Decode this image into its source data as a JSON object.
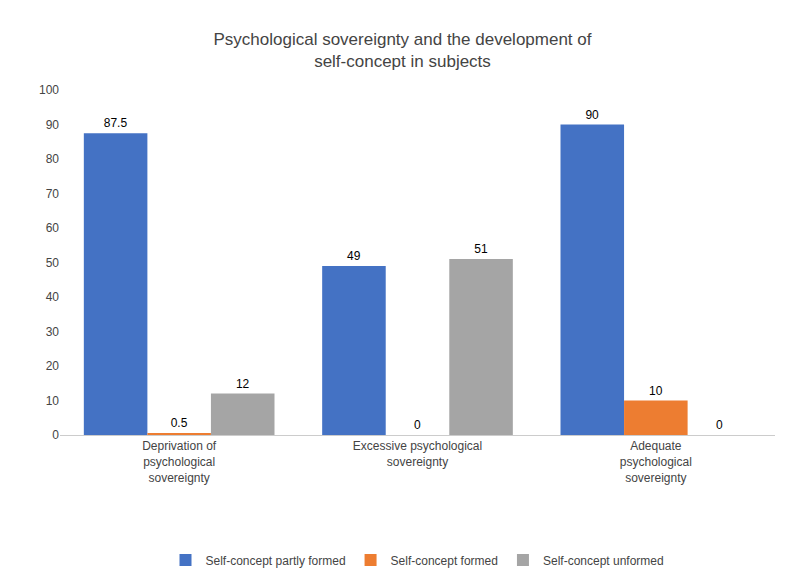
{
  "chart_data": {
    "type": "bar",
    "title": "Psychological sovereignty and the development of\nself-concept in subjects",
    "categories": [
      "Deprivation of\npsychological\nsovereignty",
      "Excessive psychological\nsovereignty",
      "Adequate\npsychological\nsovereignty"
    ],
    "series": [
      {
        "name": "Self-concept partly formed",
        "color": "#4472C4",
        "values": [
          87.5,
          49,
          90
        ]
      },
      {
        "name": "Self-concept formed",
        "color": "#ED7D31",
        "values": [
          0.5,
          0,
          10
        ]
      },
      {
        "name": "Self-concept unformed",
        "color": "#A5A5A5",
        "values": [
          12,
          51,
          0
        ]
      }
    ],
    "ylim": [
      0,
      100
    ],
    "yticks": [
      0,
      10,
      20,
      30,
      40,
      50,
      60,
      70,
      80,
      90,
      100
    ],
    "grid": false,
    "legend": "bottom",
    "data_labels": true
  }
}
